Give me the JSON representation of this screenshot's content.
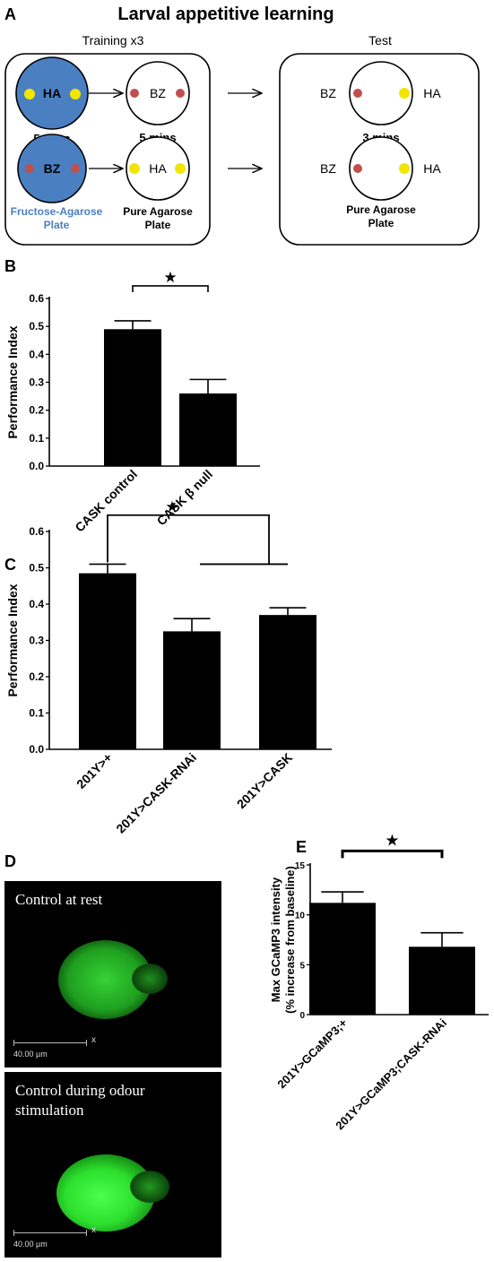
{
  "panels": {
    "A": {
      "letter": "A",
      "title": "Larval appetitive learning",
      "training_label": "Training x3",
      "test_label": "Test",
      "ha": "HA",
      "bz": "BZ",
      "time_train_1": "5 mins",
      "time_train_2": "5 mins",
      "time_test": "3 mins",
      "fructose_label_1": "Fructose-Agarose",
      "fructose_label_2": "Plate",
      "pure_label_1": "Pure Agarose",
      "pure_label_2": "Plate",
      "pure_test_label_1": "Pure Agarose",
      "pure_test_label_2": "Plate",
      "colors": {
        "fructose_plate": "#4a7fc1",
        "ha_dot": "#f2e600",
        "bz_dot": "#c0504d",
        "fructose_text": "#4a7fc1"
      }
    },
    "D": {
      "letter": "D",
      "caption_rest": "Control at rest",
      "caption_stim_1": "Control during odour",
      "caption_stim_2": "stimulation",
      "scale_label": "40.00 µm",
      "scale_x": "x",
      "colors": {
        "signal": "#2ecc2e"
      }
    }
  },
  "chart_data": [
    {
      "panel": "B",
      "type": "bar",
      "categories": [
        "CASK control",
        "CASK β null"
      ],
      "values": [
        0.49,
        0.26
      ],
      "errors": [
        0.03,
        0.05
      ],
      "ylabel": "Performance Index",
      "ylim": [
        0,
        0.6
      ],
      "yticks": [
        "0.0",
        "0.1",
        "0.2",
        "0.3",
        "0.4",
        "0.5",
        "0.6"
      ],
      "significance": "★",
      "bar_color": "#000000"
    },
    {
      "panel": "C",
      "type": "bar",
      "categories": [
        "201Y>+",
        "201Y>CASK-RNAi",
        "201Y>CASK"
      ],
      "values": [
        0.485,
        0.325,
        0.37
      ],
      "errors": [
        0.025,
        0.035,
        0.02
      ],
      "ylabel": "Performance Index",
      "ylim": [
        0,
        0.6
      ],
      "yticks": [
        "0.0",
        "0.1",
        "0.2",
        "0.3",
        "0.4",
        "0.5",
        "0.6"
      ],
      "significance": "★",
      "bar_color": "#000000"
    },
    {
      "panel": "E",
      "type": "bar",
      "categories": [
        "201Y>GCaMP3;+",
        "201Y>GCaMP3;CASK-RNAi"
      ],
      "values": [
        11.2,
        6.8
      ],
      "errors": [
        1.1,
        1.4
      ],
      "ylabel_1": "Max GCaMP3 intensity",
      "ylabel_2": "(% increase from baseline)",
      "ylim": [
        0,
        15
      ],
      "yticks": [
        "0",
        "5",
        "10",
        "15"
      ],
      "significance": "★",
      "bar_color": "#000000"
    }
  ]
}
